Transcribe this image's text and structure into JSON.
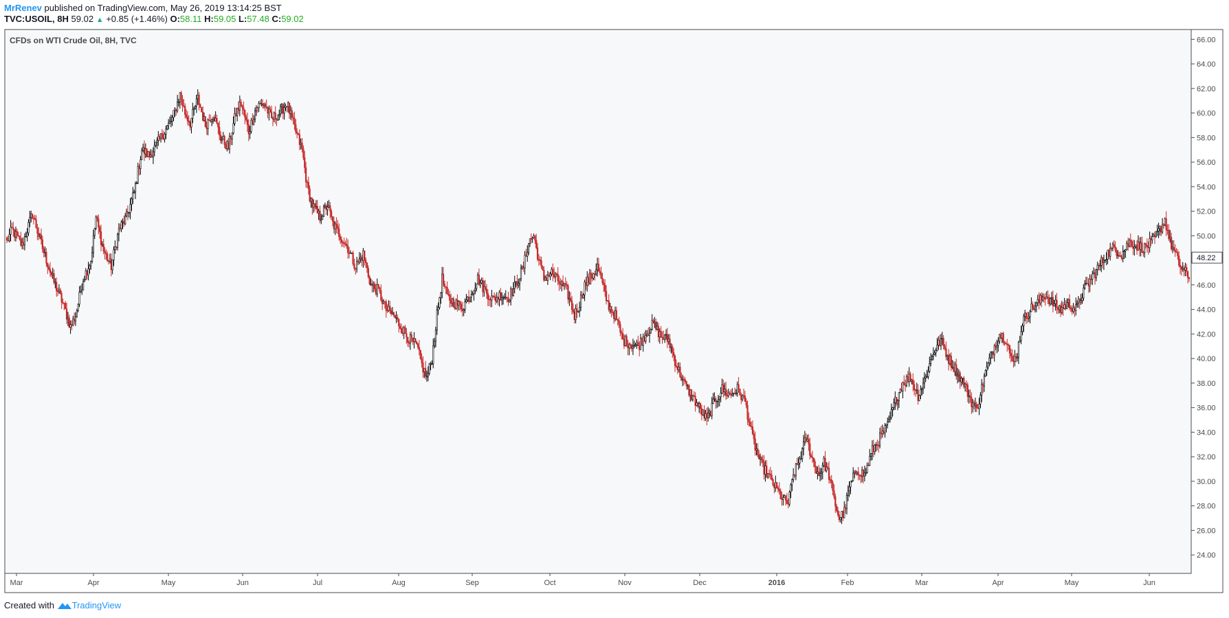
{
  "header": {
    "author": "MrRenev",
    "published": " published on TradingView.com, May 26, 2019 13:14:25 BST",
    "symbol": "TVC:USOIL, 8H",
    "last": "59.02",
    "change": "+0.85 (+1.46%)",
    "open_label": "O:",
    "open": "58.11",
    "high_label": "H:",
    "high": "59.05",
    "low_label": "L:",
    "low": "57.48",
    "close_label": "C:",
    "close": "59.02"
  },
  "footer": {
    "created_with": "Created with",
    "brand": "TradingView"
  },
  "colors": {
    "up": "#000000",
    "down": "#c62828",
    "background": "#f7f8fa",
    "accent": "#2196f3"
  },
  "chart_data": {
    "type": "candlestick",
    "title": "CFDs on WTI Crude Oil, 8H, TVC",
    "ylim": [
      22.5,
      66.8
    ],
    "y_ticks": [
      "24.00",
      "26.00",
      "28.00",
      "30.00",
      "32.00",
      "34.00",
      "36.00",
      "38.00",
      "40.00",
      "42.00",
      "44.00",
      "46.00",
      "48.00",
      "50.00",
      "52.00",
      "54.00",
      "56.00",
      "58.00",
      "60.00",
      "62.00",
      "64.00",
      "66.00"
    ],
    "x_labels": [
      "Mar",
      "Apr",
      "May",
      "Jun",
      "Jul",
      "Aug",
      "Sep",
      "Oct",
      "Nov",
      "Dec",
      "2016",
      "Feb",
      "Mar",
      "Apr",
      "May",
      "Jun"
    ],
    "last_price_label": "48.22",
    "grid": false,
    "anchors": [
      {
        "i": 0,
        "v": 49.5
      },
      {
        "i": 4,
        "v": 50.5
      },
      {
        "i": 12,
        "v": 49.2
      },
      {
        "i": 20,
        "v": 51.8
      },
      {
        "i": 28,
        "v": 49.0
      },
      {
        "i": 36,
        "v": 46.5
      },
      {
        "i": 44,
        "v": 44.5
      },
      {
        "i": 50,
        "v": 42.6
      },
      {
        "i": 54,
        "v": 43.5
      },
      {
        "i": 60,
        "v": 46.5
      },
      {
        "i": 66,
        "v": 48.0
      },
      {
        "i": 70,
        "v": 51.5
      },
      {
        "i": 76,
        "v": 48.8
      },
      {
        "i": 82,
        "v": 47.5
      },
      {
        "i": 88,
        "v": 50.5
      },
      {
        "i": 94,
        "v": 51.5
      },
      {
        "i": 100,
        "v": 53.5
      },
      {
        "i": 106,
        "v": 57.0
      },
      {
        "i": 112,
        "v": 56.5
      },
      {
        "i": 118,
        "v": 57.5
      },
      {
        "i": 124,
        "v": 58.5
      },
      {
        "i": 130,
        "v": 59.5
      },
      {
        "i": 136,
        "v": 61.5
      },
      {
        "i": 140,
        "v": 60.0
      },
      {
        "i": 144,
        "v": 59.2
      },
      {
        "i": 150,
        "v": 61.2
      },
      {
        "i": 156,
        "v": 59.0
      },
      {
        "i": 162,
        "v": 60.0
      },
      {
        "i": 168,
        "v": 58.0
      },
      {
        "i": 174,
        "v": 57.2
      },
      {
        "i": 180,
        "v": 60.0
      },
      {
        "i": 184,
        "v": 60.8
      },
      {
        "i": 190,
        "v": 58.5
      },
      {
        "i": 196,
        "v": 60.5
      },
      {
        "i": 202,
        "v": 60.8
      },
      {
        "i": 208,
        "v": 59.5
      },
      {
        "i": 214,
        "v": 60.0
      },
      {
        "i": 220,
        "v": 60.8
      },
      {
        "i": 226,
        "v": 58.8
      },
      {
        "i": 232,
        "v": 57.0
      },
      {
        "i": 236,
        "v": 54.0
      },
      {
        "i": 240,
        "v": 52.5
      },
      {
        "i": 246,
        "v": 51.5
      },
      {
        "i": 252,
        "v": 52.5
      },
      {
        "i": 256,
        "v": 51.0
      },
      {
        "i": 262,
        "v": 50.0
      },
      {
        "i": 268,
        "v": 49.0
      },
      {
        "i": 274,
        "v": 47.5
      },
      {
        "i": 280,
        "v": 48.5
      },
      {
        "i": 286,
        "v": 46.0
      },
      {
        "i": 292,
        "v": 45.5
      },
      {
        "i": 298,
        "v": 44.0
      },
      {
        "i": 304,
        "v": 43.5
      },
      {
        "i": 310,
        "v": 42.5
      },
      {
        "i": 316,
        "v": 41.6
      },
      {
        "i": 322,
        "v": 41.0
      },
      {
        "i": 326,
        "v": 39.5
      },
      {
        "i": 330,
        "v": 38.4
      },
      {
        "i": 334,
        "v": 40.0
      },
      {
        "i": 338,
        "v": 43.5
      },
      {
        "i": 342,
        "v": 46.5
      },
      {
        "i": 346,
        "v": 45.0
      },
      {
        "i": 352,
        "v": 44.5
      },
      {
        "i": 358,
        "v": 44.2
      },
      {
        "i": 364,
        "v": 45.2
      },
      {
        "i": 370,
        "v": 46.5
      },
      {
        "i": 376,
        "v": 45.5
      },
      {
        "i": 382,
        "v": 44.8
      },
      {
        "i": 388,
        "v": 45.2
      },
      {
        "i": 394,
        "v": 45.0
      },
      {
        "i": 400,
        "v": 46.0
      },
      {
        "i": 406,
        "v": 47.5
      },
      {
        "i": 410,
        "v": 49.5
      },
      {
        "i": 414,
        "v": 50.0
      },
      {
        "i": 418,
        "v": 48.0
      },
      {
        "i": 422,
        "v": 46.5
      },
      {
        "i": 428,
        "v": 47.0
      },
      {
        "i": 434,
        "v": 46.2
      },
      {
        "i": 440,
        "v": 45.5
      },
      {
        "i": 446,
        "v": 43.5
      },
      {
        "i": 450,
        "v": 44.5
      },
      {
        "i": 454,
        "v": 46.0
      },
      {
        "i": 460,
        "v": 46.8
      },
      {
        "i": 464,
        "v": 47.5
      },
      {
        "i": 468,
        "v": 46.0
      },
      {
        "i": 472,
        "v": 44.5
      },
      {
        "i": 478,
        "v": 43.5
      },
      {
        "i": 484,
        "v": 41.5
      },
      {
        "i": 490,
        "v": 41.2
      },
      {
        "i": 496,
        "v": 41.0
      },
      {
        "i": 502,
        "v": 42.0
      },
      {
        "i": 508,
        "v": 42.8
      },
      {
        "i": 514,
        "v": 41.8
      },
      {
        "i": 520,
        "v": 41.5
      },
      {
        "i": 526,
        "v": 39.5
      },
      {
        "i": 532,
        "v": 38.0
      },
      {
        "i": 538,
        "v": 37.0
      },
      {
        "i": 544,
        "v": 36.0
      },
      {
        "i": 550,
        "v": 35.0
      },
      {
        "i": 556,
        "v": 36.5
      },
      {
        "i": 562,
        "v": 37.5
      },
      {
        "i": 568,
        "v": 37.0
      },
      {
        "i": 574,
        "v": 37.5
      },
      {
        "i": 580,
        "v": 36.5
      },
      {
        "i": 586,
        "v": 33.5
      },
      {
        "i": 592,
        "v": 31.5
      },
      {
        "i": 598,
        "v": 30.5
      },
      {
        "i": 604,
        "v": 29.5
      },
      {
        "i": 610,
        "v": 28.5
      },
      {
        "i": 614,
        "v": 28.2
      },
      {
        "i": 618,
        "v": 30.5
      },
      {
        "i": 622,
        "v": 31.5
      },
      {
        "i": 628,
        "v": 33.5
      },
      {
        "i": 634,
        "v": 31.5
      },
      {
        "i": 638,
        "v": 30.5
      },
      {
        "i": 642,
        "v": 31.5
      },
      {
        "i": 646,
        "v": 30.5
      },
      {
        "i": 650,
        "v": 28.5
      },
      {
        "i": 654,
        "v": 27.0
      },
      {
        "i": 658,
        "v": 27.5
      },
      {
        "i": 662,
        "v": 29.5
      },
      {
        "i": 668,
        "v": 31.0
      },
      {
        "i": 674,
        "v": 30.5
      },
      {
        "i": 680,
        "v": 32.5
      },
      {
        "i": 686,
        "v": 33.5
      },
      {
        "i": 692,
        "v": 34.5
      },
      {
        "i": 698,
        "v": 36.5
      },
      {
        "i": 704,
        "v": 38.0
      },
      {
        "i": 710,
        "v": 38.5
      },
      {
        "i": 716,
        "v": 37.0
      },
      {
        "i": 722,
        "v": 38.5
      },
      {
        "i": 728,
        "v": 40.5
      },
      {
        "i": 734,
        "v": 41.5
      },
      {
        "i": 740,
        "v": 40.0
      },
      {
        "i": 746,
        "v": 39.0
      },
      {
        "i": 752,
        "v": 38.0
      },
      {
        "i": 758,
        "v": 36.5
      },
      {
        "i": 762,
        "v": 35.8
      },
      {
        "i": 768,
        "v": 38.5
      },
      {
        "i": 774,
        "v": 40.5
      },
      {
        "i": 780,
        "v": 42.0
      },
      {
        "i": 786,
        "v": 41.5
      },
      {
        "i": 790,
        "v": 39.5
      },
      {
        "i": 794,
        "v": 40.5
      },
      {
        "i": 798,
        "v": 43.0
      },
      {
        "i": 804,
        "v": 44.0
      },
      {
        "i": 810,
        "v": 44.5
      },
      {
        "i": 816,
        "v": 45.2
      },
      {
        "i": 822,
        "v": 44.5
      },
      {
        "i": 828,
        "v": 44.0
      },
      {
        "i": 834,
        "v": 44.5
      },
      {
        "i": 840,
        "v": 44.0
      },
      {
        "i": 846,
        "v": 45.5
      },
      {
        "i": 852,
        "v": 46.5
      },
      {
        "i": 858,
        "v": 47.5
      },
      {
        "i": 864,
        "v": 48.5
      },
      {
        "i": 870,
        "v": 49.0
      },
      {
        "i": 876,
        "v": 48.5
      },
      {
        "i": 882,
        "v": 49.5
      },
      {
        "i": 888,
        "v": 49.2
      },
      {
        "i": 894,
        "v": 49.0
      },
      {
        "i": 900,
        "v": 49.5
      },
      {
        "i": 906,
        "v": 50.5
      },
      {
        "i": 910,
        "v": 51.3
      },
      {
        "i": 914,
        "v": 49.5
      },
      {
        "i": 918,
        "v": 48.5
      },
      {
        "i": 922,
        "v": 47.5
      },
      {
        "i": 926,
        "v": 47.0
      },
      {
        "i": 929,
        "v": 46.5
      }
    ]
  }
}
